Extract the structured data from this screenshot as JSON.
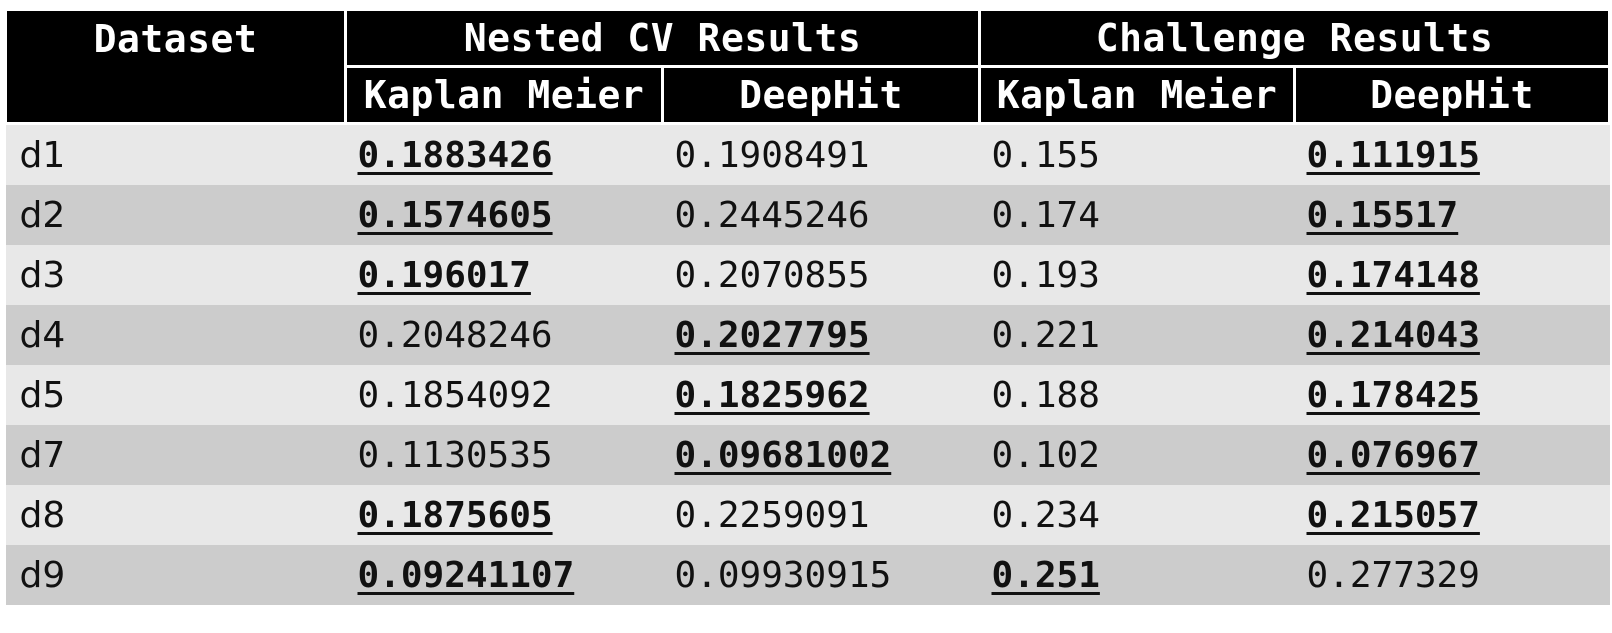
{
  "header": {
    "dataset": "Dataset",
    "nested_cv": "Nested CV Results",
    "challenge": "Challenge Results",
    "km1": "Kaplan Meier",
    "dh1": "DeepHit",
    "km2": "Kaplan Meier",
    "dh2": "DeepHit"
  },
  "rows": [
    {
      "dataset": "d1",
      "cv_km": "0.1883426",
      "cv_dh": "0.1908491",
      "ch_km": "0.155",
      "ch_dh": "0.111915"
    },
    {
      "dataset": "d2",
      "cv_km": "0.1574605",
      "cv_dh": "0.2445246",
      "ch_km": "0.174",
      "ch_dh": "0.15517"
    },
    {
      "dataset": "d3",
      "cv_km": "0.196017",
      "cv_dh": "0.2070855",
      "ch_km": "0.193",
      "ch_dh": "0.174148"
    },
    {
      "dataset": "d4",
      "cv_km": "0.2048246",
      "cv_dh": "0.2027795",
      "ch_km": "0.221",
      "ch_dh": "0.214043"
    },
    {
      "dataset": "d5",
      "cv_km": "0.1854092",
      "cv_dh": "0.1825962",
      "ch_km": "0.188",
      "ch_dh": "0.178425"
    },
    {
      "dataset": "d7",
      "cv_km": "0.1130535",
      "cv_dh": "0.09681002",
      "ch_km": "0.102",
      "ch_dh": "0.076967"
    },
    {
      "dataset": "d8",
      "cv_km": "0.1875605",
      "cv_dh": "0.2259091",
      "ch_km": "0.234",
      "ch_dh": "0.215057"
    },
    {
      "dataset": "d9",
      "cv_km": "0.09241107",
      "cv_dh": "0.09930915",
      "ch_km": "0.251",
      "ch_dh": "0.277329"
    }
  ]
}
